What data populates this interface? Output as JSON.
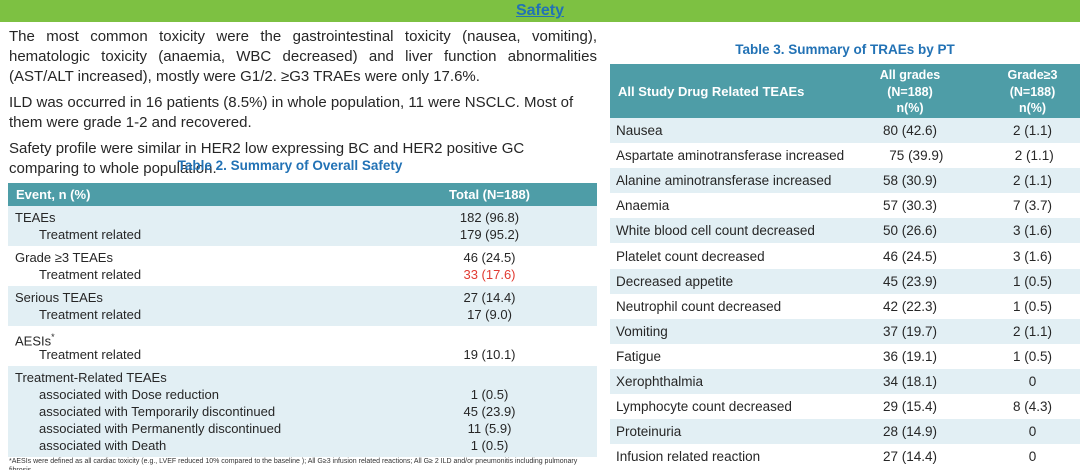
{
  "header": {
    "title": "Safety"
  },
  "colors": {
    "header_bar_green": "#7dc142",
    "title_blue": "#2272b5",
    "table_header_teal": "#4e9da7",
    "row_band_blue": "#e2eff4",
    "highlight_red": "#e13b32",
    "body_text": "#262626"
  },
  "paragraphs": [
    "The most common toxicity were the gastrointestinal toxicity (nausea, vomiting), hematologic toxicity (anaemia, WBC decreased) and liver function abnormalities (AST/ALT increased), mostly were G1/2.  ≥G3 TRAEs were only 17.6%.",
    "ILD was occurred in 16 patients (8.5%) in whole population, 11 were NSCLC. Most of them were grade 1-2 and recovered.",
    "Safety profile were similar in HER2 low expressing BC and HER2 positive GC comparing to whole population."
  ],
  "table2": {
    "caption": "Table 2. Summary of Overall Safety",
    "columns": [
      "Event, n (%)",
      "Total (N=188)"
    ],
    "groups": [
      {
        "rows": [
          {
            "label": "TEAEs",
            "indent": false,
            "value": "182 (96.8)"
          },
          {
            "label": "Treatment related",
            "indent": true,
            "value": "179 (95.2)"
          }
        ]
      },
      {
        "rows": [
          {
            "label": "Grade ≥3 TEAEs",
            "indent": false,
            "value": "46 (24.5)"
          },
          {
            "label": "Treatment related",
            "indent": true,
            "value": "33 (17.6)",
            "highlight": true
          }
        ]
      },
      {
        "rows": [
          {
            "label": "Serious TEAEs",
            "indent": false,
            "value": "27 (14.4)"
          },
          {
            "label": "Treatment related",
            "indent": true,
            "value": "17 (9.0)"
          }
        ]
      },
      {
        "rows": [
          {
            "label": "AESIs",
            "sup": "*",
            "indent": false,
            "value": ""
          },
          {
            "label": "Treatment related",
            "indent": true,
            "value": "19 (10.1)"
          }
        ]
      },
      {
        "rows": [
          {
            "label": "Treatment-Related TEAEs",
            "indent": false,
            "value": ""
          },
          {
            "label": "associated with Dose reduction",
            "indent": true,
            "value": "1 (0.5)"
          },
          {
            "label": "associated with Temporarily discontinued",
            "indent": true,
            "value": "45 (23.9)"
          },
          {
            "label": "associated with Permanently discontinued",
            "indent": true,
            "value": "11 (5.9)"
          },
          {
            "label": "associated with Death",
            "indent": true,
            "value": "1 (0.5)"
          }
        ]
      }
    ],
    "footnote": "*AESIs were defined as all cardiac toxicity (e.g., LVEF reduced 10% compared to the baseline ); All G≥3 infusion related reactions; All G≥ 2 ILD and/or pneumonitis including pulmonary fibrosis."
  },
  "table3": {
    "caption": "Table 3. Summary of TRAEs by PT",
    "col1_header": "All Study Drug Related TEAEs",
    "col2_header": "All grades\n(N=188)\nn(%)",
    "col3_header": "Grade≥3\n(N=188)\nn(%)",
    "rows": [
      [
        "Nausea",
        "80 (42.6)",
        "2 (1.1)"
      ],
      [
        "Aspartate aminotransferase increased",
        "75 (39.9)",
        "2 (1.1)"
      ],
      [
        "Alanine aminotransferase increased",
        "58 (30.9)",
        "2 (1.1)"
      ],
      [
        "Anaemia",
        "57 (30.3)",
        "7 (3.7)"
      ],
      [
        "White blood cell count decreased",
        "50 (26.6)",
        "3 (1.6)"
      ],
      [
        "Platelet count decreased",
        "46 (24.5)",
        "3 (1.6)"
      ],
      [
        "Decreased appetite",
        "45 (23.9)",
        "1 (0.5)"
      ],
      [
        "Neutrophil count decreased",
        "42 (22.3)",
        "1 (0.5)"
      ],
      [
        "Vomiting",
        "37 (19.7)",
        "2 (1.1)"
      ],
      [
        "Fatigue",
        "36 (19.1)",
        "1 (0.5)"
      ],
      [
        "Xerophthalmia",
        "34 (18.1)",
        "0"
      ],
      [
        "Lymphocyte count decreased",
        "29 (15.4)",
        "8 (4.3)"
      ],
      [
        "Proteinuria",
        "28 (14.9)",
        "0"
      ],
      [
        "Infusion related reaction",
        "27 (14.4)",
        "0"
      ]
    ]
  }
}
